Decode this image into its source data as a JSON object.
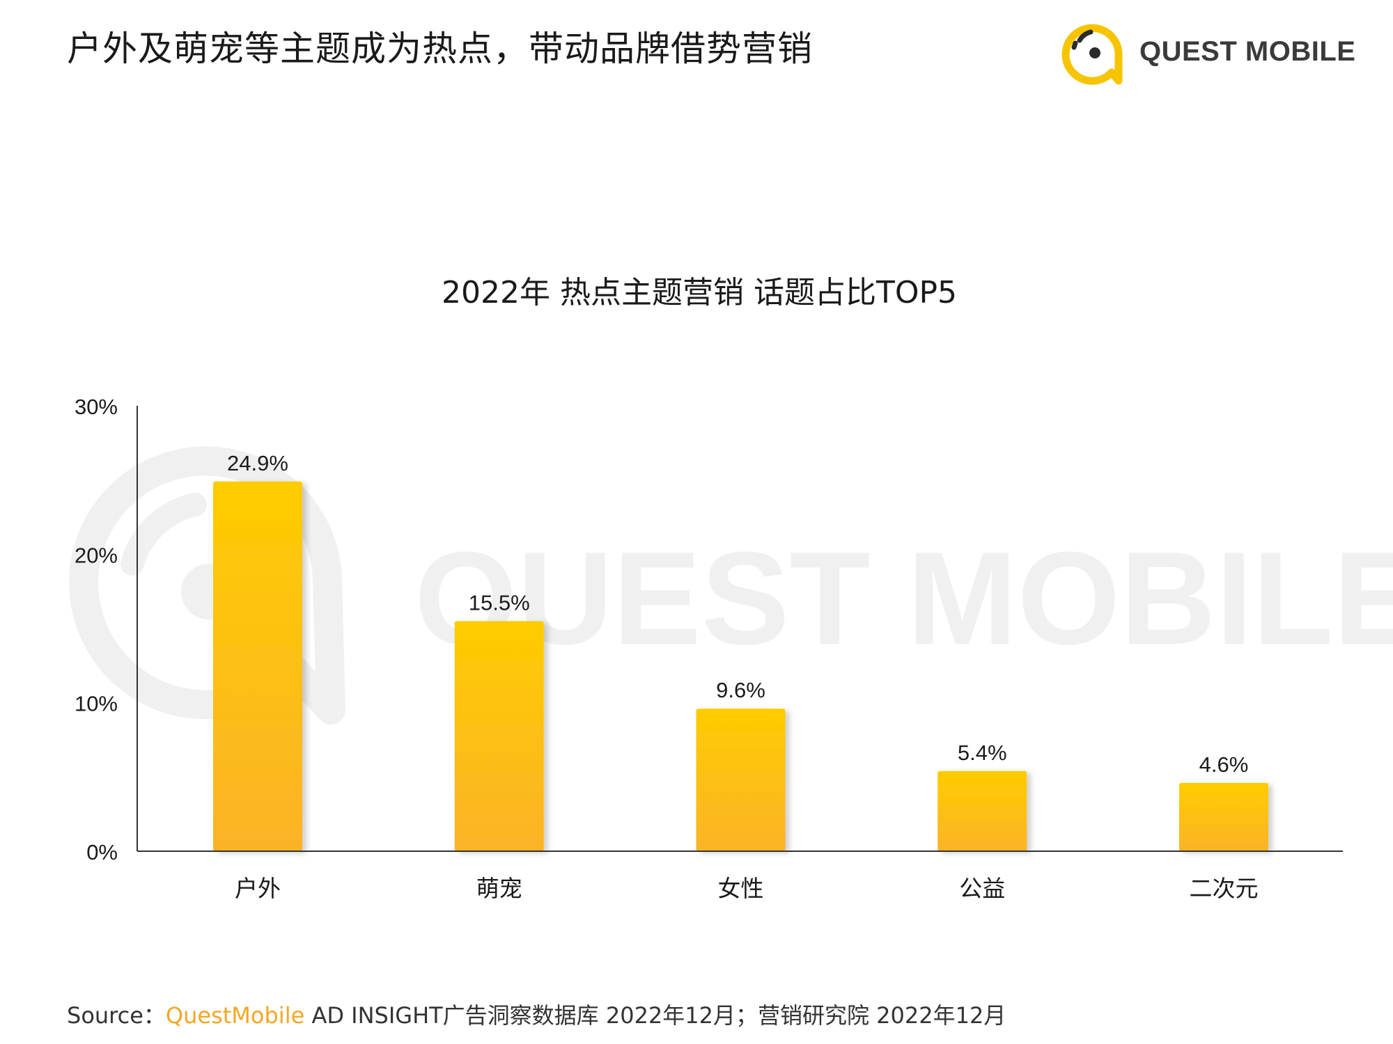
{
  "header": {
    "title": "户外及萌宠等主题成为热点，带动品牌借势营销",
    "logo_text": "QUEST MOBILE"
  },
  "chart_data": {
    "type": "bar",
    "title": "2022年 热点主题营销 话题占比TOP5",
    "categories": [
      "户外",
      "萌宠",
      "女性",
      "公益",
      "二次元"
    ],
    "values": [
      24.9,
      15.5,
      9.6,
      5.4,
      4.6
    ],
    "value_labels": [
      "24.9%",
      "15.5%",
      "9.6%",
      "5.4%",
      "4.6%"
    ],
    "yticks": [
      0,
      10,
      20,
      30
    ],
    "ytick_labels": [
      "0%",
      "10%",
      "20%",
      "30%"
    ],
    "ylim": [
      0,
      30
    ],
    "xlabel": "",
    "ylabel": "",
    "grid": false,
    "bar_color_top": "#ffcc00",
    "bar_color_bottom": "#fbb327"
  },
  "watermark": {
    "text": "QUEST MOBILE"
  },
  "footer": {
    "source_label": "Source：",
    "source_brand": "QuestMobile",
    "source_rest": " AD INSIGHT广告洞察数据库 2022年12月；营销研究院 2022年12月"
  },
  "colors": {
    "accent": "#f5a623",
    "logo_yellow": "#f6c400",
    "axis": "#333333"
  }
}
